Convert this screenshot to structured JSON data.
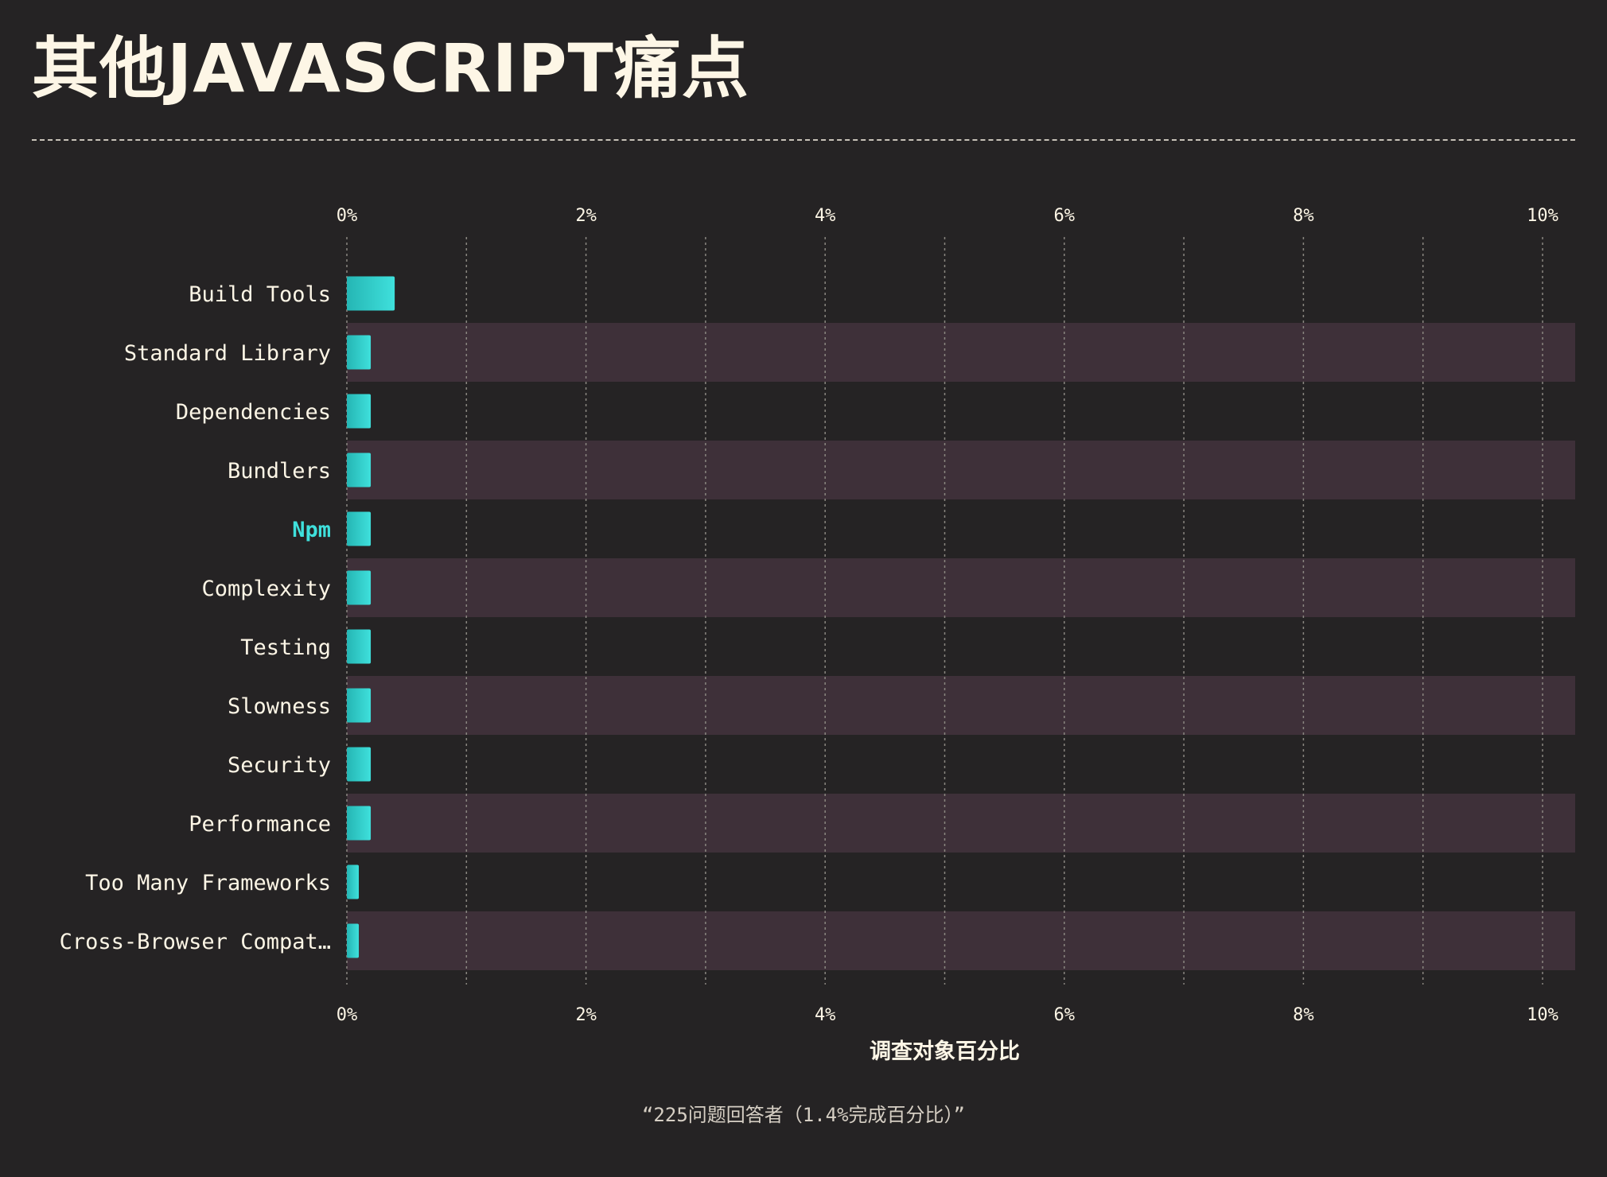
{
  "page": {
    "title": "其他JAVASCRIPT痛点",
    "note": "“225问题回答者（1.4%完成百分比）”"
  },
  "colors": {
    "background": "#252324",
    "stripe": "#3e3039",
    "bar_start": "#25b6b4",
    "bar_end": "#3fe0dc",
    "text": "#fdf6e6",
    "highlight": "#3fe0dc",
    "grid": "#8a8680"
  },
  "chart_data": {
    "type": "bar",
    "orientation": "horizontal",
    "title": "其他JAVASCRIPT痛点",
    "xlabel": "调查对象百分比",
    "ylabel": "",
    "xlim": [
      0,
      10
    ],
    "x_ticks": [
      "0%",
      "2%",
      "4%",
      "6%",
      "8%",
      "10%"
    ],
    "grid": true,
    "categories": [
      "Build Tools",
      "Standard Library",
      "Dependencies",
      "Bundlers",
      "Npm",
      "Complexity",
      "Testing",
      "Slowness",
      "Security",
      "Performance",
      "Too Many Frameworks",
      "Cross-Browser Compat…"
    ],
    "values": [
      0.4,
      0.2,
      0.2,
      0.2,
      0.2,
      0.2,
      0.2,
      0.2,
      0.2,
      0.2,
      0.1,
      0.1
    ],
    "highlighted_category": "Npm"
  }
}
